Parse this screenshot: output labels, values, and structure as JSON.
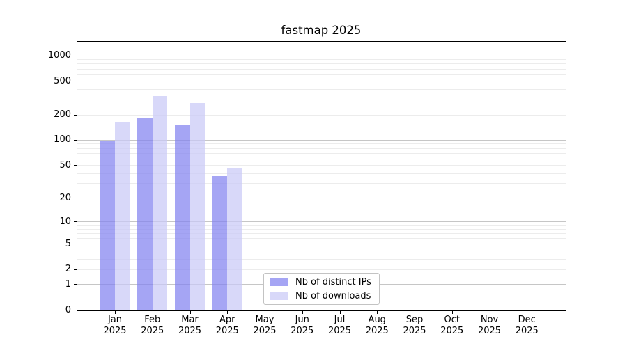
{
  "title": "fastmap 2025",
  "chart_data": {
    "type": "bar",
    "title": "fastmap 2025",
    "categories": [
      "Jan 2025",
      "Feb 2025",
      "Mar 2025",
      "Apr 2025",
      "May 2025",
      "Jun 2025",
      "Jul 2025",
      "Aug 2025",
      "Sep 2025",
      "Oct 2025",
      "Nov 2025",
      "Dec 2025"
    ],
    "series": [
      {
        "name": "Nb of distinct IPs",
        "color": "#8282f0",
        "values": [
          97,
          183,
          152,
          37,
          0,
          0,
          0,
          0,
          0,
          0,
          0,
          0
        ]
      },
      {
        "name": "Nb of downloads",
        "color": "#c9c9f6",
        "values": [
          163,
          330,
          272,
          46,
          0,
          0,
          0,
          0,
          0,
          0,
          0,
          0
        ]
      }
    ],
    "yscale": "log1p",
    "ylim": [
      0,
      1480
    ],
    "y_ticks": [
      0,
      1,
      2,
      5,
      10,
      20,
      50,
      100,
      200,
      500,
      1000
    ],
    "grid": {
      "major_ticks": [
        1,
        10,
        100,
        1000
      ],
      "minor_subs": [
        2,
        3,
        4,
        5,
        6,
        7,
        8,
        9
      ],
      "major_color": "#c6c6c6",
      "minor_color": "#ececec"
    },
    "bar_opacity": 0.72,
    "legend": {
      "location": "lower center",
      "labels": [
        "Nb of distinct IPs",
        "Nb of downloads"
      ]
    }
  }
}
